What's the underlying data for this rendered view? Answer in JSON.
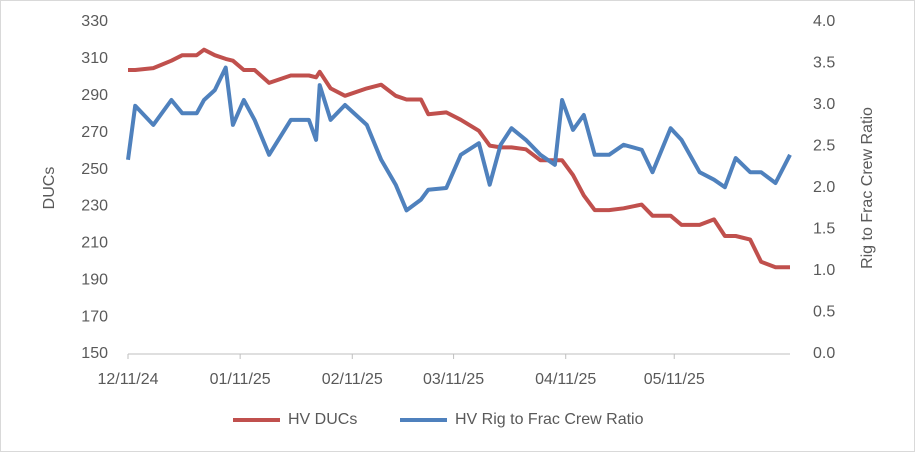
{
  "chart_data": {
    "type": "line",
    "x": [
      "12/11/24",
      "12/13/24",
      "12/18/24",
      "12/23/24",
      "12/26/24",
      "12/30/24",
      "01/01/25",
      "01/04/25",
      "01/07/25",
      "01/09/25",
      "01/12/25",
      "01/15/25",
      "01/19/25",
      "01/25/25",
      "01/30/25",
      "02/01/25",
      "02/02/25",
      "02/05/25",
      "02/09/25",
      "02/15/25",
      "02/19/25",
      "02/23/25",
      "02/26/25",
      "03/02/25",
      "03/04/25",
      "03/09/25",
      "03/13/25",
      "03/18/25",
      "03/21/25",
      "03/24/25",
      "03/27/25",
      "03/31/25",
      "04/04/25",
      "04/08/25",
      "04/10/25",
      "04/13/25",
      "04/16/25",
      "04/19/25",
      "04/23/25",
      "04/27/25",
      "05/02/25",
      "05/05/25",
      "05/10/25",
      "05/13/25",
      "05/18/25",
      "05/22/25",
      "05/25/25",
      "05/28/25",
      "06/01/25",
      "06/04/25",
      "06/08/25",
      "06/12/25"
    ],
    "series": [
      {
        "name": "HV DUCs",
        "color": "#c0504d",
        "axis": "y",
        "values": [
          304,
          304,
          305,
          309,
          312,
          312,
          315,
          312,
          310,
          309,
          304,
          304,
          297,
          301,
          301,
          300,
          303,
          294,
          290,
          294,
          296,
          290,
          288,
          288,
          280,
          281,
          277,
          271,
          263,
          262,
          262,
          261,
          255,
          255,
          255,
          247,
          236,
          228,
          228,
          229,
          231,
          225,
          225,
          220,
          220,
          223,
          214,
          214,
          212,
          200,
          197,
          197
        ]
      },
      {
        "name": "HV Rig to Frac Crew Ratio",
        "color": "#4f81bd",
        "axis": "y2",
        "values": [
          2.34,
          2.99,
          2.76,
          3.06,
          2.9,
          2.9,
          3.06,
          3.18,
          3.45,
          2.76,
          3.06,
          2.82,
          2.4,
          2.82,
          2.82,
          2.58,
          3.24,
          2.82,
          3.0,
          2.76,
          2.34,
          2.04,
          1.73,
          1.86,
          1.98,
          2.0,
          2.4,
          2.54,
          2.04,
          2.52,
          2.72,
          2.58,
          2.4,
          2.28,
          3.06,
          2.7,
          2.88,
          2.4,
          2.4,
          2.52,
          2.46,
          2.19,
          2.72,
          2.58,
          2.19,
          2.1,
          2.01,
          2.36,
          2.19,
          2.19,
          2.06,
          2.4
        ]
      }
    ],
    "xlim": [
      "12/11/24",
      "06/12/25"
    ],
    "xticks": [
      "12/11/24",
      "01/11/25",
      "02/11/25",
      "03/11/25",
      "04/11/25",
      "05/11/25"
    ],
    "ylabel": "DUCs",
    "ylim": [
      150,
      330
    ],
    "yticks": [
      150,
      170,
      190,
      210,
      230,
      250,
      270,
      290,
      310,
      330
    ],
    "y2label": "Rig to Frac Crew Ratio",
    "y2lim": [
      0,
      4
    ],
    "y2ticks": [
      {
        "value": 0,
        "label": "0.0"
      },
      0.5,
      {
        "value": 1,
        "label": "1.0"
      },
      1.5,
      {
        "value": 2,
        "label": "2.0"
      },
      2.5,
      {
        "value": 3,
        "label": "3.0"
      },
      3.5,
      {
        "value": 4,
        "label": "4.0"
      }
    ],
    "grid": false,
    "legend": "bottom"
  }
}
